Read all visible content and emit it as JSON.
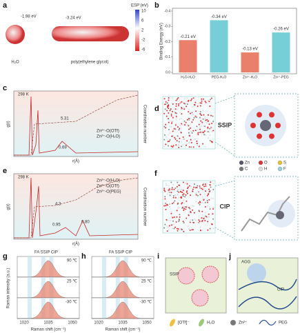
{
  "panels": {
    "a": {
      "label": "a",
      "h2o_energy": "-1.98 eV",
      "peg_energy": "-3.24 eV",
      "h2o": "H₂O",
      "peg": "poly(ethylene glycol)",
      "colorbar_title": "ESP (eV)",
      "colorbar_ticks": [
        "10",
        "6",
        "2",
        "-2",
        "-6"
      ]
    },
    "b": {
      "label": "b",
      "type": "bar",
      "ylabel": "Binding Energy (eV)",
      "categories": [
        "H₂O-H₂O",
        "PEG-H₂O",
        "Zn²⁺-H₂O",
        "Zn²⁺-PEG"
      ],
      "values": [
        -0.21,
        -0.34,
        -0.13,
        -0.26
      ],
      "value_labels": [
        "-0.21 eV",
        "-0.34 eV",
        "-0.13 eV",
        "-0.26 eV"
      ],
      "colors": [
        "#e56a52",
        "#5ec7cf",
        "#e56a52",
        "#5ec7cf"
      ],
      "ylim": [
        0,
        -0.4
      ],
      "yticks": [
        {
          "value": 0,
          "label": "0.0"
        },
        -0.1,
        -0.2,
        -0.3,
        -0.4
      ]
    },
    "c": {
      "label": "c",
      "temp": "298 K",
      "cn1": "5.31",
      "cn2": "0.69",
      "legend": [
        "Zn²⁺-O(OTf)",
        "Zn²⁺-O(H₂O)"
      ],
      "xlabel": "r(Å)",
      "ylabel": "g(r)",
      "y2label": "Coordination number"
    },
    "d": {
      "label": "d",
      "tag": "SSIP"
    },
    "e": {
      "label": "e",
      "temp": "298 K",
      "cn1": "4.3",
      "cn2": "0.95",
      "cn3": "0.80",
      "legend": [
        "Zn²⁺-O(H₂O)",
        "Zn²⁺-O(OTf)",
        "Zn²⁺-O(PEG)"
      ],
      "xlabel": "r(Å)",
      "ylabel": "g(r)",
      "y2label": "Coordination number"
    },
    "f": {
      "label": "f",
      "tag": "CIP",
      "atoms": [
        "Zn",
        "O",
        "S",
        "C",
        "H",
        "F"
      ]
    },
    "g": {
      "label": "g",
      "bands": "FA  SSIP CIP",
      "temps": [
        "90 ℃",
        "25 ℃",
        "-30 ℃"
      ],
      "xticks": [
        "1020",
        "1035",
        "1050"
      ],
      "xlabel": "Raman shift (cm⁻¹)",
      "ylabel": "Raman intensity (a.u.)"
    },
    "h": {
      "label": "h",
      "bands": "FA  SSIP CIP",
      "temps": [
        "90 ℃",
        "25 ℃",
        "-30 ℃"
      ],
      "xticks": [
        "1020",
        "1035",
        "1050"
      ],
      "xlabel": "Raman shift (cm⁻¹)"
    },
    "i": {
      "label": "i",
      "tag": "SSIP"
    },
    "j": {
      "label": "j",
      "agg": "AGG",
      "cip": "CIP"
    },
    "legend": [
      "[OTf]⁻",
      "H₂O",
      "Zn²⁺",
      "PEG"
    ]
  }
}
